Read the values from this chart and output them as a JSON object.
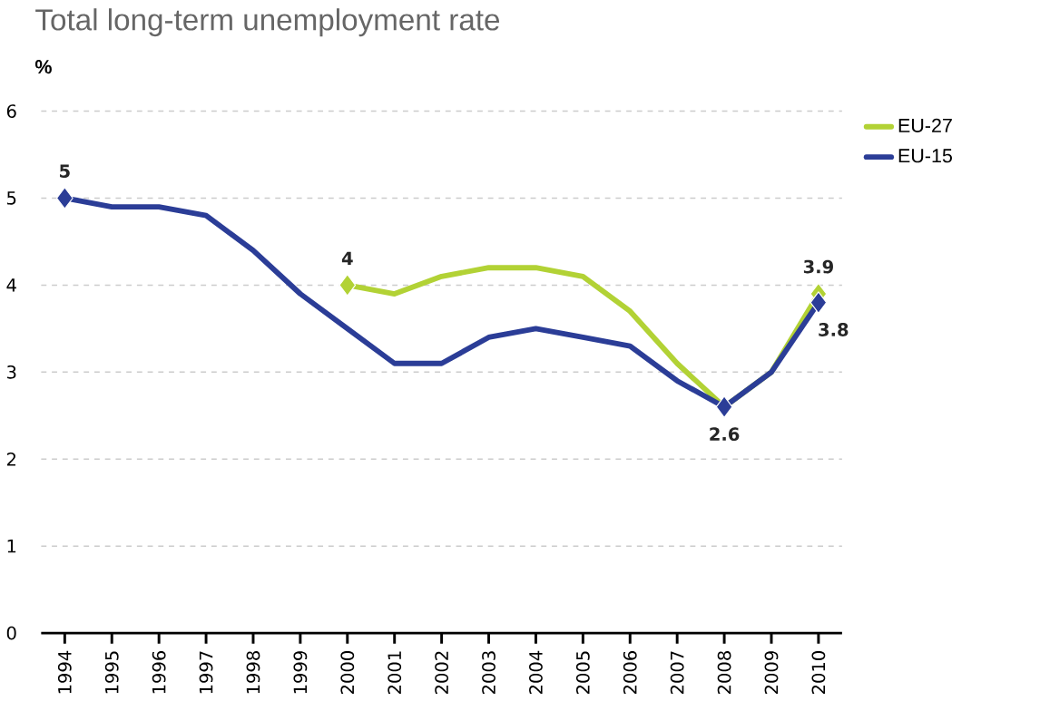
{
  "chart_data": {
    "type": "line",
    "title": "Total long-term unemployment rate",
    "ylabel": "%",
    "categories": [
      "1994",
      "1995",
      "1996",
      "1997",
      "1998",
      "1999",
      "2000",
      "2001",
      "2002",
      "2003",
      "2004",
      "2005",
      "2006",
      "2007",
      "2008",
      "2009",
      "2010"
    ],
    "series": [
      {
        "name": "EU-27",
        "color": "#b2d235",
        "values": [
          null,
          null,
          null,
          null,
          null,
          null,
          4.0,
          3.9,
          4.1,
          4.2,
          4.2,
          4.1,
          3.7,
          3.1,
          2.6,
          3.0,
          3.9
        ],
        "value_labels": [
          null,
          null,
          null,
          null,
          null,
          null,
          "4",
          null,
          null,
          null,
          null,
          null,
          null,
          null,
          null,
          null,
          "3.9"
        ]
      },
      {
        "name": "EU-15",
        "color": "#2b3d97",
        "values": [
          5.0,
          4.9,
          4.9,
          4.8,
          4.4,
          3.9,
          3.5,
          3.1,
          3.1,
          3.4,
          3.5,
          3.4,
          3.3,
          2.9,
          2.6,
          3.0,
          3.8
        ],
        "value_labels": [
          "5",
          null,
          null,
          null,
          null,
          null,
          null,
          null,
          null,
          null,
          null,
          null,
          null,
          null,
          "2.6",
          null,
          "3.8"
        ]
      }
    ],
    "ylim": [
      0,
      6
    ],
    "yticks": [
      0,
      1,
      2,
      3,
      4,
      5,
      6
    ],
    "grid": "y",
    "legend": "top right",
    "line_style": "solid"
  }
}
